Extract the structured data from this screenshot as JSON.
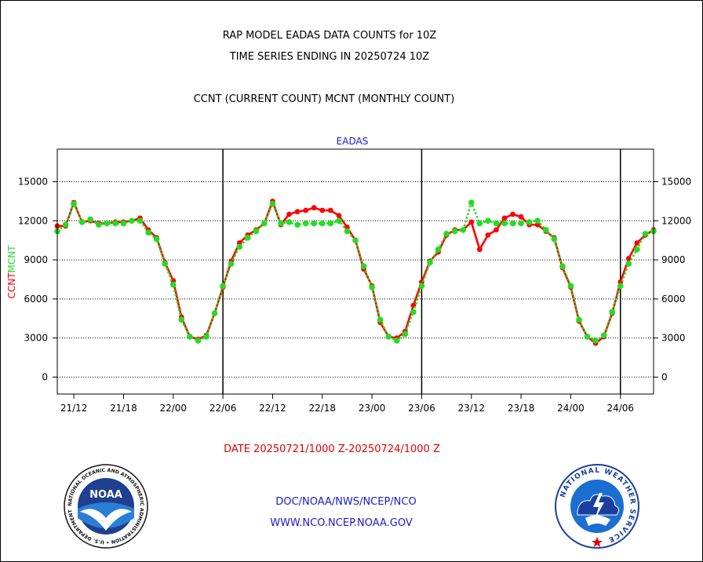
{
  "header": {
    "title_line1": "RAP MODEL EADAS DATA COUNTS for 10Z",
    "title_line2": "TIME SERIES ENDING IN 20250724 10Z",
    "title_line3": "CCNT (CURRENT COUNT) MCNT (MONTHLY COUNT)"
  },
  "footer": {
    "date_range": "DATE 20250721/1000 Z-20250724/1000 Z",
    "link1": "DOC/NOAA/NWS/NCEP/NCO",
    "link2": "WWW.NCO.NCEP.NOAA.GOV"
  },
  "logos": {
    "noaa_text": "NOAA",
    "noaa_ring": "NATIONAL OCEANIC AND ATMOSPHERIC ADMINISTRATION • U.S. DEPARTMENT OF COMMERCE •",
    "nws_ring": "NATIONAL WEATHER SERVICE"
  },
  "colors": {
    "ccnt": "#ff0000",
    "mcnt": "#22dd22",
    "text_red": "#e00000",
    "text_blue": "#1a1acc"
  },
  "chart_data": {
    "type": "line",
    "title": "EADAS",
    "ylabel_left": [
      "CCNT",
      "MCNT"
    ],
    "ylim": [
      -1300,
      17500
    ],
    "yticks": [
      0,
      3000,
      6000,
      9000,
      12000,
      15000
    ],
    "xlim": [
      0,
      72
    ],
    "xticks": [
      {
        "x": 2,
        "label": "21/12"
      },
      {
        "x": 8,
        "label": "21/18"
      },
      {
        "x": 14,
        "label": "22/00"
      },
      {
        "x": 20,
        "label": "22/06"
      },
      {
        "x": 26,
        "label": "22/12"
      },
      {
        "x": 32,
        "label": "22/18"
      },
      {
        "x": 38,
        "label": "23/00"
      },
      {
        "x": 44,
        "label": "23/06"
      },
      {
        "x": 50,
        "label": "23/12"
      },
      {
        "x": 56,
        "label": "23/18"
      },
      {
        "x": 62,
        "label": "24/00"
      },
      {
        "x": 68,
        "label": "24/06"
      }
    ],
    "day_dividers": [
      20,
      44,
      68
    ],
    "grid": "horizontal-dotted",
    "series": [
      {
        "name": "CCNT",
        "color": "#ff0000",
        "values": [
          11600,
          11600,
          13400,
          11900,
          12000,
          11800,
          11800,
          11900,
          11900,
          12000,
          12200,
          11300,
          10700,
          8800,
          7400,
          4600,
          3100,
          2900,
          3200,
          4900,
          6900,
          8900,
          10300,
          10900,
          11300,
          11800,
          13500,
          11700,
          12500,
          12700,
          12800,
          13000,
          12800,
          12800,
          12400,
          11500,
          10500,
          8300,
          7000,
          4200,
          3100,
          3000,
          3500,
          5500,
          7300,
          8900,
          9600,
          10900,
          11300,
          11300,
          11900,
          9800,
          10900,
          11300,
          12200,
          12500,
          12300,
          11700,
          11700,
          11200,
          10700,
          8400,
          6900,
          4300,
          3100,
          2600,
          3100,
          4900,
          7300,
          9100,
          10300,
          10900,
          11300
        ]
      },
      {
        "name": "MCNT",
        "color": "#22dd22",
        "values": [
          11200,
          11700,
          13300,
          11900,
          12100,
          11700,
          11800,
          11800,
          11800,
          12000,
          12000,
          11100,
          10600,
          8700,
          7100,
          4400,
          3100,
          2800,
          3100,
          4900,
          7000,
          8700,
          10000,
          10700,
          11200,
          11800,
          13300,
          11800,
          11900,
          11700,
          11800,
          11800,
          11800,
          11800,
          12000,
          11200,
          10500,
          8500,
          6900,
          4400,
          3100,
          2800,
          3300,
          5000,
          7000,
          8800,
          9800,
          11000,
          11200,
          11300,
          13400,
          11800,
          12000,
          11800,
          11800,
          11800,
          11800,
          11900,
          12000,
          11300,
          10600,
          8500,
          7000,
          4400,
          3100,
          2800,
          3200,
          5000,
          7000,
          8700,
          9800,
          11000,
          11200
        ]
      }
    ]
  }
}
